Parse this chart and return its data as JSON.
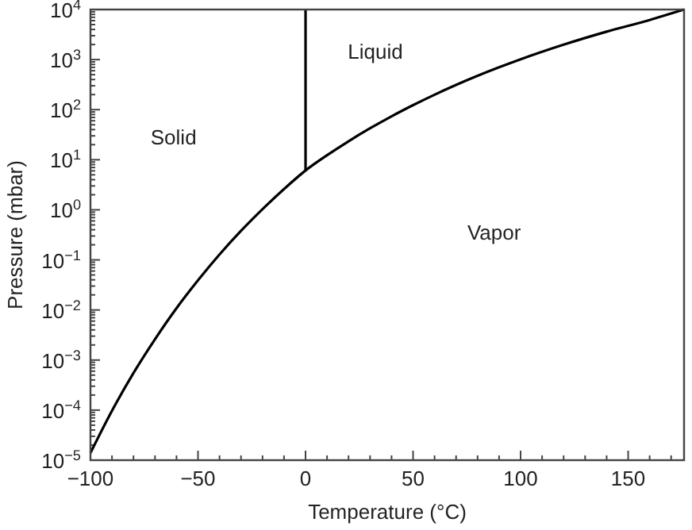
{
  "chart_data": {
    "type": "line",
    "xlabel": "Temperature (°C)",
    "ylabel": "Pressure (mbar)",
    "log": "y",
    "xlim": [
      -100,
      176
    ],
    "ylim": [
      1e-05,
      10000
    ],
    "xticks": [
      {
        "value": -100,
        "label": "−100"
      },
      {
        "value": -90,
        "label": null
      },
      {
        "value": -80,
        "label": null
      },
      {
        "value": -70,
        "label": null
      },
      {
        "value": -60,
        "label": null
      },
      {
        "value": -50,
        "label": "−50"
      },
      {
        "value": -40,
        "label": null
      },
      {
        "value": -30,
        "label": null
      },
      {
        "value": -20,
        "label": null
      },
      {
        "value": -10,
        "label": null
      },
      0,
      {
        "value": 10,
        "label": null
      },
      {
        "value": 20,
        "label": null
      },
      {
        "value": 30,
        "label": null
      },
      {
        "value": 40,
        "label": null
      },
      50,
      {
        "value": 60,
        "label": null
      },
      {
        "value": 70,
        "label": null
      },
      {
        "value": 80,
        "label": null
      },
      {
        "value": 90,
        "label": null
      },
      100,
      {
        "value": 110,
        "label": null
      },
      {
        "value": 120,
        "label": null
      },
      {
        "value": 130,
        "label": null
      },
      {
        "value": 140,
        "label": null
      },
      150,
      {
        "value": 160,
        "label": null
      },
      {
        "value": 170,
        "label": null
      }
    ],
    "yticks": [
      {
        "value": 1e-05,
        "label": "10$^{−5}$"
      },
      {
        "value": 0.0001,
        "label": "10$^{−4}$"
      },
      {
        "value": 0.001,
        "label": "10$^{−3}$"
      },
      {
        "value": 0.01,
        "label": "10$^{−2}$"
      },
      {
        "value": 0.1,
        "label": "10$^{−1}$"
      },
      {
        "value": 1,
        "label": "10$^{0}$"
      },
      {
        "value": 10,
        "label": "10$^{1}$"
      },
      {
        "value": 100,
        "label": "10$^{2}$"
      },
      {
        "value": 1000,
        "label": "10$^{3}$"
      },
      {
        "value": 10000,
        "label": "10$^{4}$"
      }
    ],
    "series": [
      {
        "color": "#000000",
        "x": [
          -100,
          -90,
          -80,
          -70,
          -60,
          -50,
          -40,
          -30,
          -20,
          -10,
          0,
          10,
          20,
          30,
          40,
          50,
          60,
          70,
          80,
          90,
          100,
          120,
          140,
          160,
          176
        ],
        "values": [
          1.4e-05,
          9.7e-05,
          0.00055,
          0.0026,
          0.0108,
          0.039,
          0.128,
          0.38,
          1.03,
          2.6,
          6.1,
          12.3,
          23.4,
          42.4,
          73.8,
          123,
          199,
          312,
          474,
          701,
          1013,
          1985,
          3614,
          6180,
          10000
        ]
      },
      {
        "color": "#000000",
        "x": [
          0,
          0
        ],
        "values": [
          6.1,
          10000
        ]
      }
    ],
    "annotations": [
      "Solid",
      "Liquid",
      "Vapor"
    ],
    "line_style": "solid",
    "marker": "none",
    "grid": false
  }
}
